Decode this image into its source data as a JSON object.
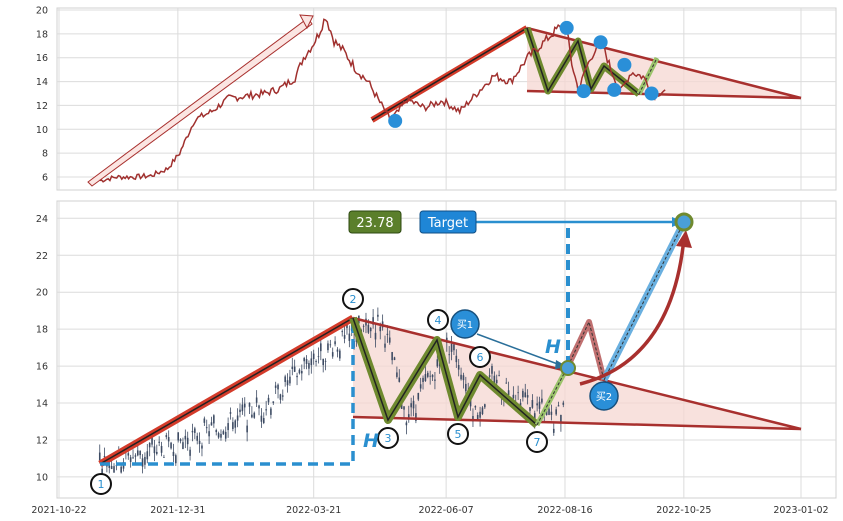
{
  "chart_data": [
    {
      "type": "line",
      "panel": "top",
      "x_range": [
        "2021-10-22",
        "2023-01-02"
      ],
      "ylim": [
        4.5,
        20
      ],
      "y_ticks": [
        6,
        8,
        10,
        12,
        14,
        16,
        18,
        20
      ],
      "grid": true,
      "series": [
        {
          "x": [
            "2021-11-15",
            "2021-11-25",
            "2021-12-05",
            "2021-12-15",
            "2021-12-25",
            "2022-01-01",
            "2022-01-10",
            "2022-01-20",
            "2022-01-30",
            "2022-02-10",
            "2022-02-20",
            "2022-03-01",
            "2022-03-10",
            "2022-03-15",
            "2022-03-20",
            "2022-03-24",
            "2022-03-28",
            "2022-04-02",
            "2022-04-08",
            "2022-04-15",
            "2022-04-22",
            "2022-04-28",
            "2022-05-05",
            "2022-05-10",
            "2022-05-15",
            "2022-05-25",
            "2022-06-05",
            "2022-06-15",
            "2022-06-25",
            "2022-07-05",
            "2022-07-15",
            "2022-07-25",
            "2022-08-05",
            "2022-08-12",
            "2022-08-17",
            "2022-08-20",
            "2022-08-24",
            "2022-08-28",
            "2022-09-02",
            "2022-09-07",
            "2022-09-12",
            "2022-09-18",
            "2022-09-24",
            "2022-10-01",
            "2022-10-08",
            "2022-10-14"
          ],
          "values": [
            5.7,
            6.0,
            6.0,
            6.1,
            6.7,
            8.0,
            10.8,
            11.5,
            12.6,
            12.8,
            13.0,
            13.4,
            14.3,
            16.0,
            17.0,
            18.0,
            19.5,
            17.4,
            16.5,
            15.0,
            14.0,
            12.5,
            10.8,
            11.5,
            12.5,
            11.8,
            12.4,
            11.5,
            13.0,
            14.5,
            14.0,
            16.0,
            17.5,
            18.5,
            18.3,
            15.5,
            13.2,
            15.0,
            16.5,
            17.3,
            15.0,
            13.2,
            14.8,
            14.4,
            12.9,
            13.3
          ]
        }
      ],
      "markers": [
        {
          "x": "2022-05-08",
          "y": 10.7
        },
        {
          "x": "2022-08-17",
          "y": 18.5
        },
        {
          "x": "2022-08-27",
          "y": 13.2
        },
        {
          "x": "2022-09-06",
          "y": 17.3
        },
        {
          "x": "2022-09-14",
          "y": 13.3
        },
        {
          "x": "2022-09-20",
          "y": 15.4
        },
        {
          "x": "2022-10-06",
          "y": 13.0
        }
      ]
    },
    {
      "type": "candlestick",
      "panel": "bottom",
      "x_range": [
        "2021-10-22",
        "2023-01-02"
      ],
      "x_ticks": [
        "2021-10-22",
        "2021-12-31",
        "2022-03-21",
        "2022-06-07",
        "2022-08-16",
        "2022-10-25",
        "2023-01-02"
      ],
      "ylim": [
        9,
        25
      ],
      "y_ticks": [
        10,
        12,
        14,
        16,
        18,
        20,
        22,
        24
      ],
      "grid": true,
      "wave_points": [
        {
          "label": "1",
          "x": "2021-11-15",
          "y": 10.7
        },
        {
          "label": "2",
          "x": "2022-04-30",
          "y": 18.5
        },
        {
          "label": "3",
          "x": "2022-05-15",
          "y": 13.2
        },
        {
          "label": "4",
          "x": "2022-06-10",
          "y": 17.3
        },
        {
          "label": "5",
          "x": "2022-06-25",
          "y": 13.3
        },
        {
          "label": "6",
          "x": "2022-07-05",
          "y": 15.4
        },
        {
          "label": "7",
          "x": "2022-08-10",
          "y": 13.0
        }
      ],
      "buy_points": [
        {
          "label": "买1",
          "x": "2022-09-02",
          "y": 15.9
        },
        {
          "label": "买2",
          "x": "2022-09-22",
          "y": 15.1
        }
      ],
      "target_value": "23.78",
      "target_label": "Target",
      "height_label": "H"
    }
  ],
  "colors": {
    "price_line": "#a0302e",
    "trend_red": "#d43b2a",
    "triangle_fill": "#f6d7d2",
    "triangle_edge": "#a8302e",
    "wave_green": "#6f8a2f",
    "marker_blue": "#2a8fd8",
    "dash_blue": "#2a8fcf",
    "target_box": "#1f86d6",
    "value_box": "#5b7f2b",
    "candle": "#3d4b63"
  }
}
